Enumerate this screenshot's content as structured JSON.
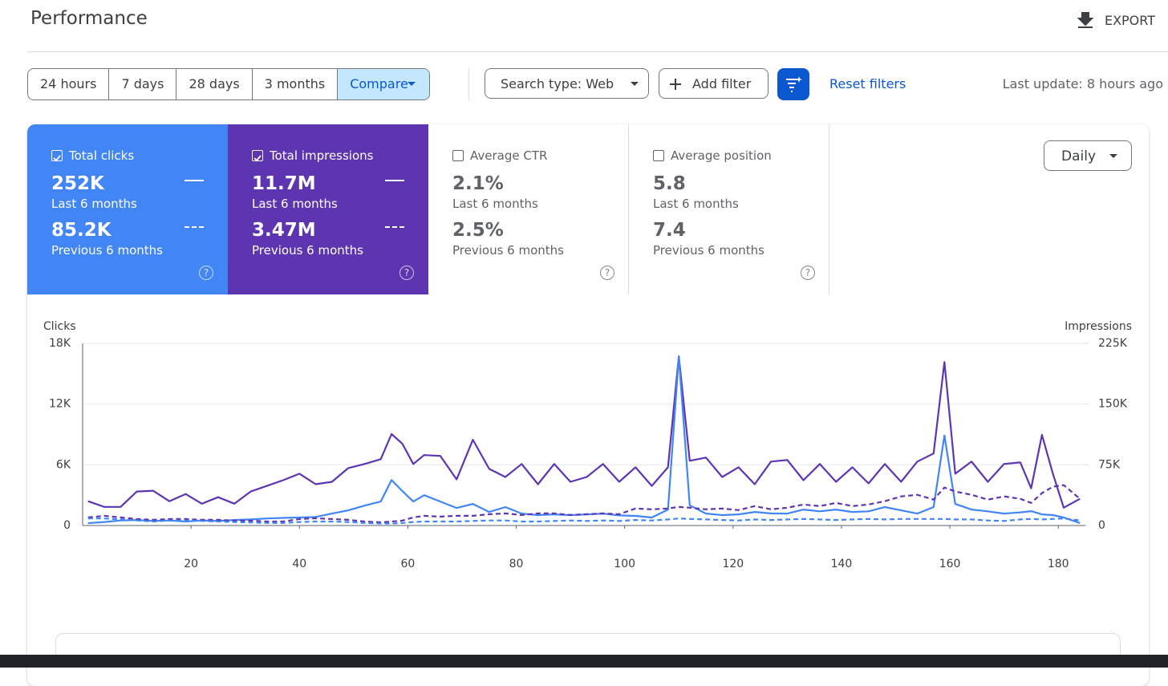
{
  "header": {
    "title": "Performance",
    "export": "EXPORT"
  },
  "toolbar": {
    "ranges": [
      "24 hours",
      "7 days",
      "28 days",
      "3 months",
      "Compare"
    ],
    "search_type": "Search type: Web",
    "add_filter": "Add filter",
    "reset": "Reset filters",
    "last_update": "Last update: 8 hours ago"
  },
  "cards": [
    {
      "label": "Total clicks",
      "current": "252K",
      "current_period": "Last 6 months",
      "previous": "85.2K",
      "previous_period": "Previous 6 months",
      "checked": true,
      "color": "#4285f4"
    },
    {
      "label": "Total impressions",
      "current": "11.7M",
      "current_period": "Last 6 months",
      "previous": "3.47M",
      "previous_period": "Previous 6 months",
      "checked": true,
      "color": "#5e35b1"
    },
    {
      "label": "Average CTR",
      "current": "2.1%",
      "current_period": "Last 6 months",
      "previous": "2.5%",
      "previous_period": "Previous 6 months",
      "checked": false,
      "color": "#ffffff"
    },
    {
      "label": "Average position",
      "current": "5.8",
      "current_period": "Last 6 months",
      "previous": "7.4",
      "previous_period": "Previous 6 months",
      "checked": false,
      "color": "#ffffff"
    }
  ],
  "granularity": "Daily",
  "chart_data": {
    "type": "line",
    "y_label": "Clicks",
    "y2_label": "Impressions",
    "x": [
      1,
      4,
      7,
      10,
      13,
      16,
      19,
      22,
      25,
      28,
      31,
      34,
      37,
      40,
      43,
      46,
      49,
      52,
      55,
      57,
      59,
      61,
      63,
      66,
      69,
      72,
      75,
      78,
      81,
      84,
      87,
      90,
      93,
      96,
      99,
      102,
      105,
      108,
      110,
      112,
      115,
      118,
      121,
      124,
      127,
      130,
      133,
      136,
      139,
      142,
      145,
      148,
      151,
      154,
      157,
      159,
      161,
      164,
      167,
      170,
      173,
      175,
      177,
      179,
      181,
      184
    ],
    "xlim": [
      0,
      185
    ],
    "xticks": [
      20,
      40,
      60,
      80,
      100,
      120,
      140,
      160,
      180
    ],
    "ylim": [
      0,
      18000
    ],
    "yticks": [
      0,
      {
        "value": 6000,
        "label": "6K"
      },
      {
        "value": 12000,
        "label": "12K"
      },
      {
        "value": 18000,
        "label": "18K"
      }
    ],
    "y2lim": [
      0,
      225000
    ],
    "y2ticks": [
      0,
      {
        "value": 75000,
        "label": "75K"
      },
      {
        "value": 150000,
        "label": "150K"
      },
      {
        "value": 225000,
        "label": "225K"
      }
    ],
    "grid": true,
    "series": [
      {
        "color": "#5e35b1",
        "axis": "y2",
        "dashed": false,
        "values": [
          30000,
          23000,
          23000,
          42000,
          43000,
          30000,
          39000,
          27000,
          35000,
          27000,
          42000,
          49000,
          56000,
          64000,
          51000,
          54000,
          71000,
          76000,
          82000,
          113000,
          101000,
          76000,
          87000,
          86000,
          57000,
          106000,
          70000,
          60000,
          76000,
          51000,
          76000,
          54000,
          60000,
          76000,
          54000,
          72000,
          49000,
          72000,
          209000,
          80000,
          84000,
          60000,
          72000,
          51000,
          79000,
          81000,
          56000,
          76000,
          54000,
          72000,
          52000,
          76000,
          54000,
          79000,
          89000,
          202000,
          64000,
          79000,
          54000,
          76000,
          78000,
          46000,
          112000,
          64000,
          22000,
          33000
        ]
      },
      {
        "color": "#4285f4",
        "axis": "y",
        "dashed": false,
        "values": [
          240,
          350,
          500,
          550,
          450,
          500,
          400,
          500,
          450,
          550,
          600,
          700,
          750,
          790,
          850,
          1180,
          1500,
          1970,
          2370,
          4500,
          3400,
          2370,
          3000,
          2370,
          1740,
          2130,
          1340,
          1820,
          1180,
          1030,
          1100,
          1030,
          1100,
          1180,
          1000,
          950,
          790,
          1580,
          16700,
          2000,
          1180,
          1030,
          1100,
          1340,
          1200,
          1180,
          1580,
          1400,
          1580,
          1340,
          1400,
          1820,
          1500,
          1180,
          1820,
          8900,
          2130,
          1580,
          1400,
          1180,
          1300,
          1420,
          1100,
          1030,
          800,
          240
        ]
      },
      {
        "color": "#5e35b1",
        "axis": "y2",
        "dashed": true,
        "values": [
          10000,
          12000,
          10000,
          8000,
          7000,
          8000,
          8000,
          7000,
          7000,
          6000,
          6000,
          5000,
          5000,
          8000,
          9000,
          8000,
          7000,
          5000,
          4000,
          5000,
          6000,
          10000,
          12000,
          11000,
          12000,
          12000,
          14000,
          15000,
          13000,
          15000,
          15000,
          13000,
          14000,
          15000,
          14000,
          21000,
          20000,
          21000,
          23000,
          22000,
          20000,
          21000,
          19000,
          24000,
          20000,
          22000,
          26000,
          24000,
          28000,
          24000,
          26000,
          30000,
          36000,
          38000,
          32000,
          47000,
          42000,
          38000,
          32000,
          36000,
          33000,
          28000,
          40000,
          48000,
          50000,
          33000
        ]
      },
      {
        "color": "#4285f4",
        "axis": "y",
        "dashed": true,
        "values": [
          700,
          700,
          600,
          500,
          400,
          500,
          500,
          450,
          400,
          350,
          300,
          250,
          250,
          350,
          400,
          400,
          350,
          250,
          200,
          200,
          250,
          350,
          400,
          400,
          400,
          450,
          500,
          500,
          400,
          400,
          450,
          500,
          450,
          500,
          450,
          550,
          500,
          600,
          700,
          650,
          600,
          550,
          500,
          600,
          550,
          600,
          650,
          600,
          550,
          600,
          650,
          600,
          650,
          650,
          650,
          650,
          600,
          600,
          500,
          450,
          600,
          650,
          600,
          650,
          700,
          500
        ]
      }
    ]
  }
}
